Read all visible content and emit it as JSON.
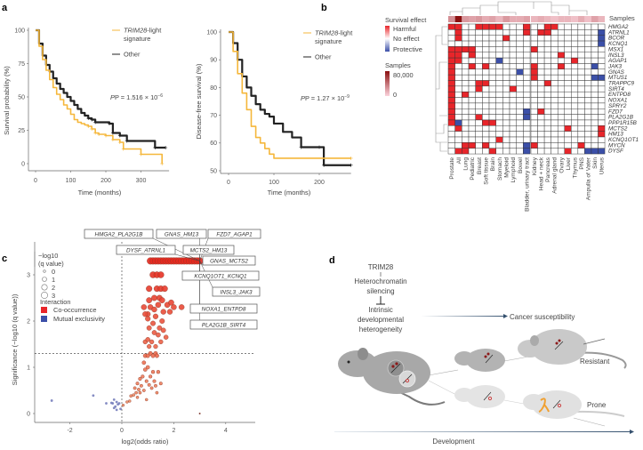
{
  "panels": {
    "a": "a",
    "b": "b",
    "c": "c",
    "d": "d"
  },
  "chart_data": [
    {
      "id": "km-overall",
      "type": "line",
      "title": "",
      "xlabel": "Time (months)",
      "ylabel": "Survival probability (%)",
      "xlim": [
        0,
        380
      ],
      "ylim": [
        0,
        100
      ],
      "xticks": [
        0,
        100,
        200,
        300
      ],
      "yticks": [
        0,
        25,
        50,
        75,
        100
      ],
      "legend": {
        "gene": "TRIM28",
        "suffix": "-light",
        "line2": "signature",
        "other": "Other",
        "placement": "top-right"
      },
      "p_value": {
        "text": "P = 1.516 × 10",
        "exp": "−6"
      },
      "series": [
        {
          "name": "TRIM28-light signature",
          "color": "#f5b73b",
          "points": [
            [
              0,
              100
            ],
            [
              10,
              88
            ],
            [
              20,
              78
            ],
            [
              30,
              70
            ],
            [
              40,
              63
            ],
            [
              50,
              57
            ],
            [
              60,
              52
            ],
            [
              70,
              48
            ],
            [
              80,
              44
            ],
            [
              90,
              41
            ],
            [
              100,
              37
            ],
            [
              110,
              33
            ],
            [
              120,
              31
            ],
            [
              130,
              30
            ],
            [
              140,
              29
            ],
            [
              150,
              28
            ],
            [
              160,
              26
            ],
            [
              170,
              23
            ],
            [
              180,
              22
            ],
            [
              200,
              21
            ],
            [
              220,
              18
            ],
            [
              240,
              16
            ],
            [
              250,
              11
            ],
            [
              300,
              7
            ],
            [
              360,
              0
            ]
          ]
        },
        {
          "name": "Other",
          "color": "#222222",
          "points": [
            [
              0,
              100
            ],
            [
              10,
              90
            ],
            [
              20,
              81
            ],
            [
              30,
              74
            ],
            [
              40,
              69
            ],
            [
              50,
              64
            ],
            [
              60,
              60
            ],
            [
              70,
              56
            ],
            [
              80,
              53
            ],
            [
              90,
              50
            ],
            [
              100,
              47
            ],
            [
              110,
              44
            ],
            [
              120,
              41
            ],
            [
              130,
              38
            ],
            [
              140,
              36
            ],
            [
              150,
              34
            ],
            [
              160,
              33
            ],
            [
              170,
              31
            ],
            [
              210,
              30
            ],
            [
              220,
              23
            ],
            [
              240,
              21
            ],
            [
              260,
              17
            ],
            [
              340,
              12
            ],
            [
              370,
              12
            ]
          ]
        }
      ]
    },
    {
      "id": "km-disease-free",
      "type": "line",
      "title": "",
      "xlabel": "Time (months)",
      "ylabel": "Disease-free survival (%)",
      "xlim": [
        0,
        270
      ],
      "ylim": [
        50,
        100
      ],
      "xticks": [
        0,
        100,
        200
      ],
      "yticks": [
        50,
        60,
        70,
        80,
        90,
        100
      ],
      "legend": {
        "gene": "TRIM28",
        "suffix": "-light",
        "line2": "signature",
        "other": "Other",
        "placement": "top-right"
      },
      "p_value": {
        "text": "P = 1.27 × 10",
        "exp": "−9"
      },
      "series": [
        {
          "name": "TRIM28-light signature",
          "color": "#f5b73b",
          "points": [
            [
              0,
              100
            ],
            [
              10,
              93
            ],
            [
              20,
              85
            ],
            [
              30,
              78
            ],
            [
              40,
              72
            ],
            [
              50,
              66
            ],
            [
              60,
              62
            ],
            [
              70,
              60
            ],
            [
              80,
              58
            ],
            [
              90,
              56
            ],
            [
              100,
              54.5
            ],
            [
              270,
              54.5
            ]
          ]
        },
        {
          "name": "Other",
          "color": "#222222",
          "points": [
            [
              0,
              100
            ],
            [
              10,
              96
            ],
            [
              20,
              90
            ],
            [
              30,
              84
            ],
            [
              40,
              80
            ],
            [
              50,
              77
            ],
            [
              60,
              74
            ],
            [
              70,
              72
            ],
            [
              80,
              70.5
            ],
            [
              90,
              69.5
            ],
            [
              100,
              67
            ],
            [
              120,
              64
            ],
            [
              140,
              62
            ],
            [
              160,
              58.5
            ],
            [
              200,
              58.5
            ],
            [
              210,
              52
            ],
            [
              270,
              52
            ]
          ]
        }
      ]
    },
    {
      "id": "survival-heatmap",
      "type": "heatmap",
      "legend": {
        "title": "Survival effect",
        "harmful": "Harmful",
        "none": "No effect",
        "protective": "Protective",
        "samples_title": "Samples",
        "samples_max": "80,000",
        "samples_min": "0",
        "samples_header": "Samples"
      },
      "colors": {
        "harmful": "#e8252a",
        "protective": "#3b4fa8",
        "none": "#ffffff"
      },
      "columns": [
        "Prostate",
        "All",
        "Lung",
        "Pediatric",
        "Breast",
        "Soft tissue",
        "Brain",
        "Stomach",
        "Myeloid",
        "Lymphoid",
        "Bowel",
        "Bladder, urinary tract",
        "Kidney",
        "Head + neck",
        "Pancreas",
        "Adrenal gland",
        "Ovary",
        "Liver",
        "Thymus",
        "PNS",
        "Ampulla of Vater",
        "Skin",
        "Uterus"
      ],
      "samples_level": [
        0.35,
        1.0,
        0.3,
        0.25,
        0.3,
        0.2,
        0.25,
        0.15,
        0.3,
        0.2,
        0.2,
        0.25,
        0.15,
        0.2,
        0.15,
        0.1,
        0.15,
        0.15,
        0.1,
        0.2,
        0.1,
        0.25,
        0.15
      ],
      "rows": [
        {
          "gene": "HMGA2",
          "cells": "RR..RRRR...R..RR......."
        },
        {
          "gene": "ATRNL1",
          "cells": ".R.........R.RR.......B"
        },
        {
          "gene": "BCOR",
          "cells": ".R......R.............B"
        },
        {
          "gene": "KCNQ1",
          "cells": "......................B"
        },
        {
          "gene": "MSX1",
          "cells": "RRRR........R.........."
        },
        {
          "gene": "INSL3",
          "cells": "RR.R............R......"
        },
        {
          "gene": "AGAP1",
          "cells": "RR.....B..........R...."
        },
        {
          "gene": "JAK3",
          "cells": "R..R.R......R...R....B."
        },
        {
          "gene": "GNAS",
          "cells": "R.........B.R.........."
        },
        {
          "gene": "MTUS1",
          "cells": "R...........R........BB"
        },
        {
          "gene": "TRAPPC9",
          "cells": "R...RR........R........"
        },
        {
          "gene": "SIRT4",
          "cells": "R...R....R............."
        },
        {
          "gene": "ENTPD8",
          "cells": "R.R...................."
        },
        {
          "gene": "NOXA1",
          "cells": "R......................"
        },
        {
          "gene": "SPRY2",
          "cells": "R......................"
        },
        {
          "gene": "FZD7",
          "cells": "R..........B.R........."
        },
        {
          "gene": "PLA2G1B",
          "cells": "R...R......B..........."
        },
        {
          "gene": "PPP1R15B",
          "cells": "RB...RR................"
        },
        {
          "gene": "MCTS2",
          "cells": ".R...............R....R"
        },
        {
          "gene": "HM13",
          "cells": "......................R"
        },
        {
          "gene": "KCNQ1OT1",
          "cells": ".......R..............."
        },
        {
          "gene": "MYCN",
          "cells": "..RR.R.....BR......R..."
        },
        {
          "gene": "DYSF",
          "cells": ".RR...R....B.....R..BBB"
        }
      ]
    },
    {
      "id": "volcano",
      "type": "scatter",
      "xlabel": "log2(odds ratio)",
      "ylabel": "Significance (−log10 (q value))",
      "xlim": [
        -3.3,
        5.1
      ],
      "ylim": [
        0,
        3.7
      ],
      "xticks": [
        -2,
        0,
        2,
        4
      ],
      "yticks": [
        0,
        1,
        2,
        3
      ],
      "threshold_y": 1.3,
      "threshold_x": 0,
      "legend": {
        "size_title_1": "−log10",
        "size_title_2": "(q value)",
        "sizes": [
          "0",
          "1",
          "2",
          "3"
        ],
        "interaction_title": "Interaction",
        "co": "Co-occurrence",
        "mutex": "Mutual exclusivity",
        "placement": "top-left"
      },
      "colors": {
        "co": "#e8252a",
        "mutex": "#3b4fa8"
      },
      "labels": [
        "HMGA2_PLA2G1B",
        "GNAS_HM13",
        "FZD7_AGAP1",
        "DYSF_ATRNL1",
        "MCTS2_HM13",
        "GNAS_MCTS2",
        "KCNQ1OT1_KCNQ1",
        "INSL3_JAK3",
        "NOXA1_ENTPD8",
        "PLA2G1B_SIRT4"
      ],
      "mutex_points": [
        [
          -2.7,
          0.28
        ],
        [
          -1.1,
          0.39
        ],
        [
          -0.6,
          0.22
        ],
        [
          -0.4,
          0.23
        ],
        [
          -0.35,
          0.22
        ],
        [
          -0.3,
          0.3
        ],
        [
          -0.25,
          0.15
        ],
        [
          -0.2,
          0.25
        ],
        [
          -0.15,
          0.2
        ],
        [
          -0.1,
          0.22
        ],
        [
          -0.05,
          0.1
        ],
        [
          -0.3,
          0.12
        ],
        [
          -0.2,
          0.08
        ]
      ],
      "co_points": [
        [
          0.05,
          0.18
        ],
        [
          0.2,
          0.25
        ],
        [
          0.3,
          0.27
        ],
        [
          0.35,
          0.38
        ],
        [
          0.45,
          0.4
        ],
        [
          0.5,
          0.55
        ],
        [
          0.55,
          0.45
        ],
        [
          0.6,
          0.35
        ],
        [
          0.6,
          0.65
        ],
        [
          0.65,
          0.52
        ],
        [
          0.7,
          0.45
        ],
        [
          0.7,
          0.75
        ],
        [
          0.75,
          0.6
        ],
        [
          0.8,
          0.8
        ],
        [
          0.85,
          0.5
        ],
        [
          0.9,
          0.95
        ],
        [
          0.95,
          0.3
        ],
        [
          0.95,
          0.7
        ],
        [
          1.0,
          1.0
        ],
        [
          1.05,
          0.62
        ],
        [
          1.1,
          0.8
        ],
        [
          1.15,
          0.55
        ],
        [
          1.2,
          0.9
        ],
        [
          1.25,
          0.7
        ],
        [
          1.3,
          0.6
        ],
        [
          1.35,
          0.45
        ],
        [
          1.5,
          0.65
        ],
        [
          1.4,
          0.9
        ],
        [
          0.85,
          1.1
        ],
        [
          0.9,
          1.25
        ],
        [
          1.0,
          1.25
        ],
        [
          1.1,
          1.3
        ],
        [
          1.2,
          1.25
        ],
        [
          1.3,
          1.3
        ],
        [
          1.35,
          1.25
        ],
        [
          1.05,
          1.45
        ],
        [
          1.15,
          1.55
        ],
        [
          1.3,
          1.45
        ],
        [
          1.5,
          1.55
        ],
        [
          0.9,
          1.55
        ],
        [
          1.0,
          1.6
        ],
        [
          1.6,
          1.8
        ],
        [
          1.7,
          1.65
        ],
        [
          1.25,
          1.75
        ],
        [
          1.4,
          1.7
        ],
        [
          1.05,
          1.85
        ],
        [
          1.2,
          1.95
        ],
        [
          1.45,
          1.85
        ],
        [
          1.55,
          2.0
        ],
        [
          1.0,
          2.05
        ],
        [
          1.3,
          2.1
        ],
        [
          1.6,
          2.2
        ],
        [
          1.0,
          2.15
        ],
        [
          1.1,
          2.3
        ],
        [
          1.25,
          2.25
        ],
        [
          1.4,
          2.35
        ],
        [
          1.75,
          2.35
        ],
        [
          0.85,
          2.3
        ],
        [
          0.9,
          2.15
        ],
        [
          1.05,
          2.45
        ],
        [
          1.25,
          2.5
        ],
        [
          1.45,
          2.5
        ],
        [
          1.55,
          2.45
        ],
        [
          1.85,
          2.2
        ],
        [
          2.0,
          2.3
        ],
        [
          2.3,
          2.3
        ],
        [
          1.9,
          2.4
        ],
        [
          1.05,
          2.7
        ],
        [
          1.35,
          2.7
        ],
        [
          1.5,
          2.7
        ],
        [
          1.65,
          2.7
        ],
        [
          1.2,
          3.0
        ],
        [
          1.35,
          3.0
        ],
        [
          1.5,
          3.0
        ],
        [
          1.1,
          3.3
        ],
        [
          1.2,
          3.3
        ],
        [
          1.3,
          3.3
        ],
        [
          1.4,
          3.3
        ],
        [
          1.5,
          3.3
        ],
        [
          1.6,
          3.3
        ],
        [
          1.7,
          3.3
        ],
        [
          1.8,
          3.3
        ],
        [
          1.9,
          3.3
        ],
        [
          2.0,
          3.3
        ],
        [
          2.1,
          3.3
        ],
        [
          2.2,
          3.3
        ],
        [
          2.3,
          3.3
        ],
        [
          2.4,
          3.3
        ],
        [
          2.5,
          3.3
        ],
        [
          2.6,
          3.3
        ],
        [
          2.7,
          3.3
        ],
        [
          2.8,
          3.3
        ],
        [
          2.9,
          3.3
        ],
        [
          3.0,
          3.3
        ],
        [
          3.0,
          0.0
        ]
      ]
    }
  ],
  "diagram": {
    "trim28": "TRIM28",
    "silencing_1": "Heterochromatin",
    "silencing_2": "silencing",
    "heterogeneity_1": "Intrinsic",
    "heterogeneity_2": "developmental",
    "heterogeneity_3": "heterogeneity",
    "cancer_susceptibility": "Cancer susceptibility",
    "resistant": "Resistant",
    "prone": "Prone",
    "development": "Development"
  }
}
